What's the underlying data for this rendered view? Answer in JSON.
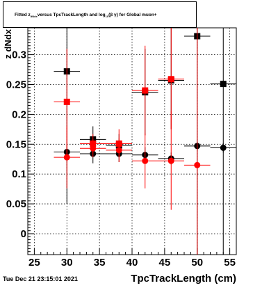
{
  "title": {
    "prefix": "Fitted  z",
    "subscript": "dNdx",
    "middle": "  versus  TpcTrackLength and log",
    "log_sub": "10",
    "suffix": "(β γ) for Global muon+"
  },
  "timestamp": "Tue Dec 21 23:15:01 2021",
  "chart_data": {
    "type": "scatter",
    "title": "Fitted z dNdx versus TpcTrackLength and log10(βγ) for Global muon+",
    "xlabel": "TpcTrackLength (cm)",
    "ylabel": "z dNdx",
    "xlim": [
      24,
      56
    ],
    "ylim": [
      -0.035,
      0.345
    ],
    "xticks": [
      25,
      30,
      35,
      40,
      45,
      50,
      55
    ],
    "xtick_labels": [
      "25",
      "30",
      "35",
      "40",
      "45",
      "50",
      "55"
    ],
    "yticks": [
      0,
      0.05,
      0.1,
      0.15,
      0.2,
      0.25,
      0.3
    ],
    "ytick_labels": [
      "0",
      "0.05",
      "0.1",
      "0.15",
      "0.2",
      "0.25",
      "0.3"
    ],
    "grid": true,
    "series": [
      {
        "color": "#000000",
        "marker": "square",
        "points": [
          {
            "x": 30,
            "y": 0.272,
            "xerr": 2,
            "ylo": 0.05,
            "yhi": 0.345
          },
          {
            "x": 34,
            "y": 0.158,
            "xerr": 2,
            "ylo": 0.138,
            "yhi": 0.18
          },
          {
            "x": 38,
            "y": 0.148,
            "xerr": 2,
            "ylo": 0.128,
            "yhi": 0.167
          },
          {
            "x": 42,
            "y": 0.237,
            "xerr": 2,
            "ylo": 0.165,
            "yhi": 0.31
          },
          {
            "x": 46,
            "y": 0.257,
            "xerr": 2,
            "ylo": 0.175,
            "yhi": 0.345
          },
          {
            "x": 50,
            "y": 0.331,
            "xerr": 2,
            "ylo": -0.035,
            "yhi": 0.345
          },
          {
            "x": 54,
            "y": 0.251,
            "xerr": 2,
            "ylo": -0.035,
            "yhi": 0.345
          }
        ]
      },
      {
        "color": "#000000",
        "marker": "circle",
        "points": [
          {
            "x": 30,
            "y": 0.137,
            "xerr": 2,
            "ylo": 0.125,
            "yhi": 0.15
          },
          {
            "x": 34,
            "y": 0.134,
            "xerr": 2,
            "ylo": 0.118,
            "yhi": 0.15
          },
          {
            "x": 38,
            "y": 0.134,
            "xerr": 2,
            "ylo": 0.12,
            "yhi": 0.148
          },
          {
            "x": 42,
            "y": 0.132,
            "xerr": 2,
            "ylo": 0.12,
            "yhi": 0.145
          },
          {
            "x": 46,
            "y": 0.126,
            "xerr": 2,
            "ylo": 0.116,
            "yhi": 0.136
          },
          {
            "x": 50,
            "y": 0.147,
            "xerr": 2,
            "ylo": 0.14,
            "yhi": 0.154
          },
          {
            "x": 54,
            "y": 0.144,
            "xerr": 2,
            "ylo": 0.136,
            "yhi": 0.152
          }
        ]
      },
      {
        "color": "#ff0000",
        "marker": "square",
        "points": [
          {
            "x": 30,
            "y": 0.221,
            "xerr": 2,
            "ylo": 0.13,
            "yhi": 0.31
          },
          {
            "x": 34,
            "y": 0.151,
            "xerr": 2,
            "ylo": 0.135,
            "yhi": 0.167
          },
          {
            "x": 38,
            "y": 0.151,
            "xerr": 2,
            "ylo": 0.128,
            "yhi": 0.175
          },
          {
            "x": 42,
            "y": 0.24,
            "xerr": 2,
            "ylo": 0.165,
            "yhi": 0.315
          },
          {
            "x": 46,
            "y": 0.259,
            "xerr": 2,
            "ylo": 0.175,
            "yhi": 0.345
          }
        ]
      },
      {
        "color": "#ff0000",
        "marker": "circle",
        "points": [
          {
            "x": 30,
            "y": 0.128,
            "xerr": 2,
            "ylo": 0.076,
            "yhi": 0.18
          },
          {
            "x": 34,
            "y": 0.143,
            "xerr": 2,
            "ylo": 0.128,
            "yhi": 0.158
          },
          {
            "x": 38,
            "y": 0.14,
            "xerr": 2,
            "ylo": 0.12,
            "yhi": 0.16
          },
          {
            "x": 42,
            "y": 0.122,
            "xerr": 2,
            "ylo": 0.076,
            "yhi": 0.168
          },
          {
            "x": 46,
            "y": 0.122,
            "xerr": 2,
            "ylo": 0.04,
            "yhi": 0.205
          },
          {
            "x": 50,
            "y": 0.115,
            "xerr": 2,
            "ylo": -0.035,
            "yhi": 0.345
          }
        ]
      }
    ]
  }
}
